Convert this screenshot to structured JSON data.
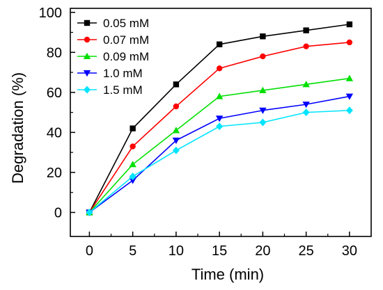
{
  "chart_data": {
    "type": "line",
    "xlabel": "Time (min)",
    "ylabel": "Degradation (%)",
    "xlim": [
      -2.2,
      32.5
    ],
    "ylim": [
      -12,
      102
    ],
    "x_ticks": [
      0,
      5,
      10,
      15,
      20,
      25,
      30
    ],
    "y_ticks": [
      0,
      20,
      40,
      60,
      80,
      100
    ],
    "grid": false,
    "legend_position": "top-left",
    "x": [
      0,
      5,
      10,
      15,
      20,
      25,
      30
    ],
    "series": [
      {
        "name": "0.05 mM",
        "color": "#000000",
        "marker": "square",
        "values": [
          0,
          42,
          64,
          84,
          88,
          91,
          94
        ]
      },
      {
        "name": "0.07 mM",
        "color": "#ff0000",
        "marker": "circle",
        "values": [
          0,
          33,
          53,
          72,
          78,
          83,
          85
        ]
      },
      {
        "name": "0.09 mM",
        "color": "#00e000",
        "marker": "triangle-up",
        "values": [
          0,
          24,
          41,
          58,
          61,
          64,
          67
        ]
      },
      {
        "name": "1.0 mM",
        "color": "#0000ff",
        "marker": "triangle-down",
        "values": [
          0,
          16,
          36,
          47,
          51,
          54,
          58
        ]
      },
      {
        "name": "1.5 mM",
        "color": "#00e5ff",
        "marker": "diamond",
        "values": [
          0,
          18,
          31,
          43,
          45,
          50,
          51
        ]
      }
    ]
  }
}
